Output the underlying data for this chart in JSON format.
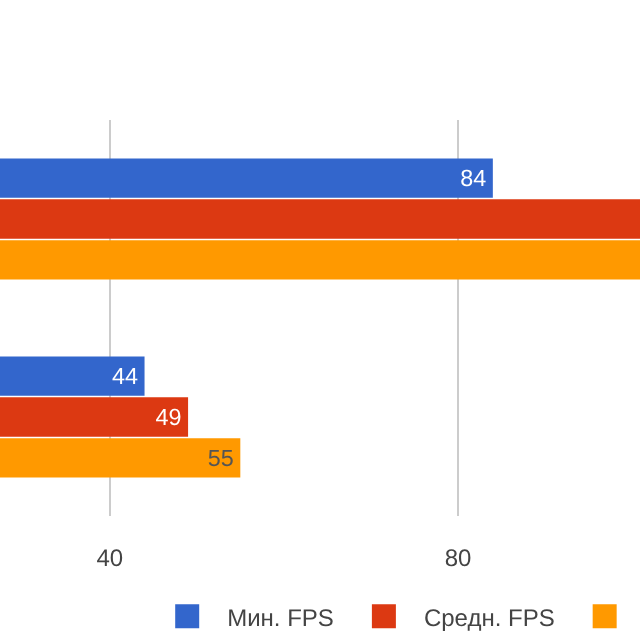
{
  "chart_data": {
    "type": "bar",
    "orientation": "horizontal",
    "categories": [
      null,
      null
    ],
    "series": [
      {
        "name": "Мин. FPS",
        "color": "#3366cc",
        "values": [
          84,
          44
        ],
        "value_labels": [
          "84",
          "44"
        ]
      },
      {
        "name": "Средн. FPS",
        "color": "#dc3912",
        "values": [
          100.9,
          49
        ],
        "value_labels": [
          null,
          "49"
        ]
      },
      {
        "color": "#ff9900",
        "values": [
          100.9,
          55
        ],
        "value_labels": [
          null,
          "55"
        ]
      }
    ],
    "xlim": [
      27.4,
      100.9
    ],
    "xticks": [
      40,
      80
    ],
    "grid": "x",
    "legend": "bottom",
    "tick_labels": "x"
  }
}
